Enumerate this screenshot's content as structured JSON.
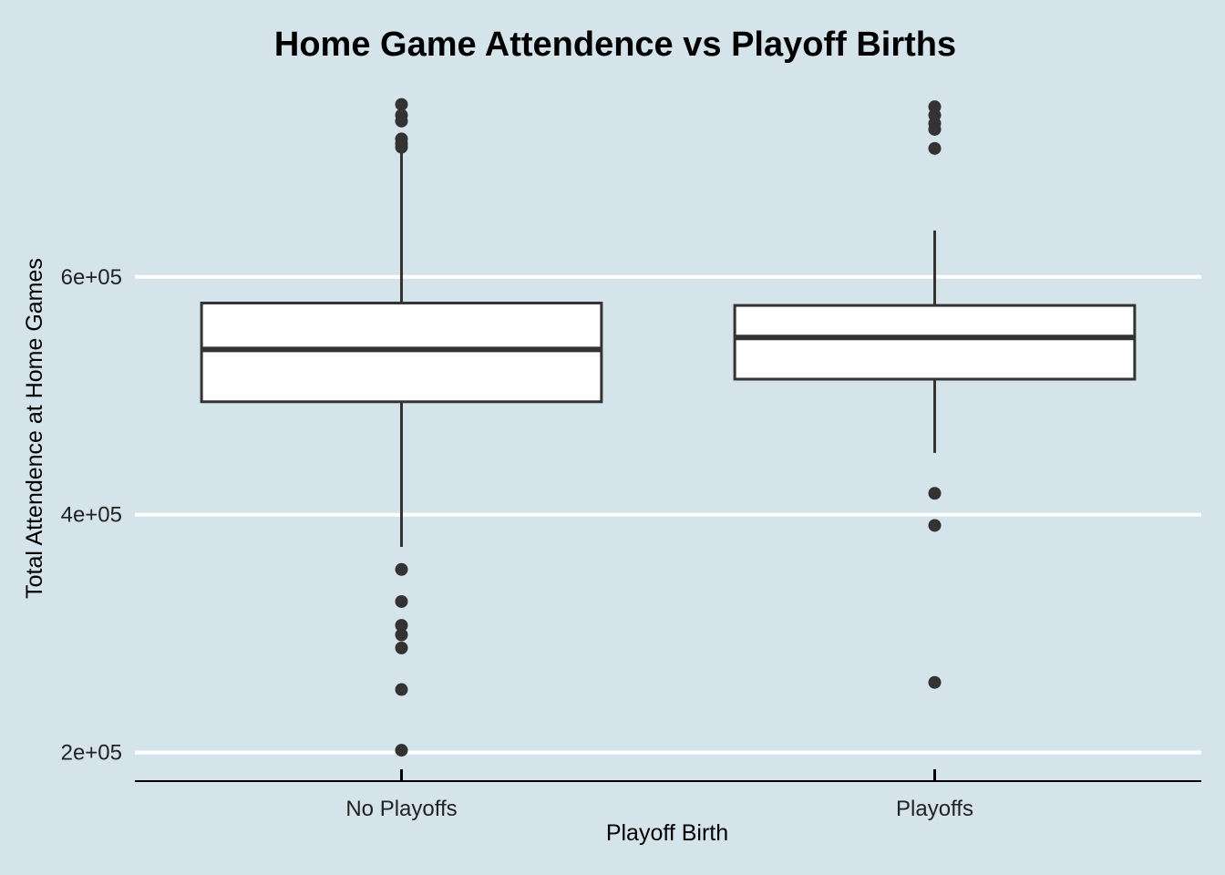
{
  "colors": {
    "background": "#d5e4eb",
    "grid": "#ffffff",
    "box_fill": "#ffffff",
    "box_stroke": "#333333",
    "outlier": "#333333",
    "axis": "#000000"
  },
  "chart_data": {
    "type": "boxplot",
    "title": "Home Game Attendence vs Playoff Births",
    "xlabel": "Playoff Birth",
    "ylabel": "Total Attendence at Home Games",
    "ylim": [
      176000,
      760000
    ],
    "yticks": [
      200000,
      400000,
      600000
    ],
    "ytick_labels": [
      "2e+05",
      "4e+05",
      "6e+05"
    ],
    "grid": "horizontal",
    "categories": [
      "No Playoffs",
      "Playoffs"
    ],
    "boxes": [
      {
        "category": "No Playoffs",
        "whisker_low": 373000,
        "q1": 495000,
        "median": 539000,
        "q3": 578000,
        "whisker_high": 708000,
        "outliers": [
          202000,
          253000,
          288000,
          299000,
          307000,
          327000,
          354000,
          709000,
          712000,
          716000,
          731000,
          736000,
          745000
        ]
      },
      {
        "category": "Playoffs",
        "whisker_low": 452000,
        "q1": 514000,
        "median": 549000,
        "q3": 576000,
        "whisker_high": 639000,
        "outliers": [
          259000,
          391000,
          418000,
          708000,
          724000,
          729000,
          736000,
          743000
        ]
      }
    ]
  }
}
